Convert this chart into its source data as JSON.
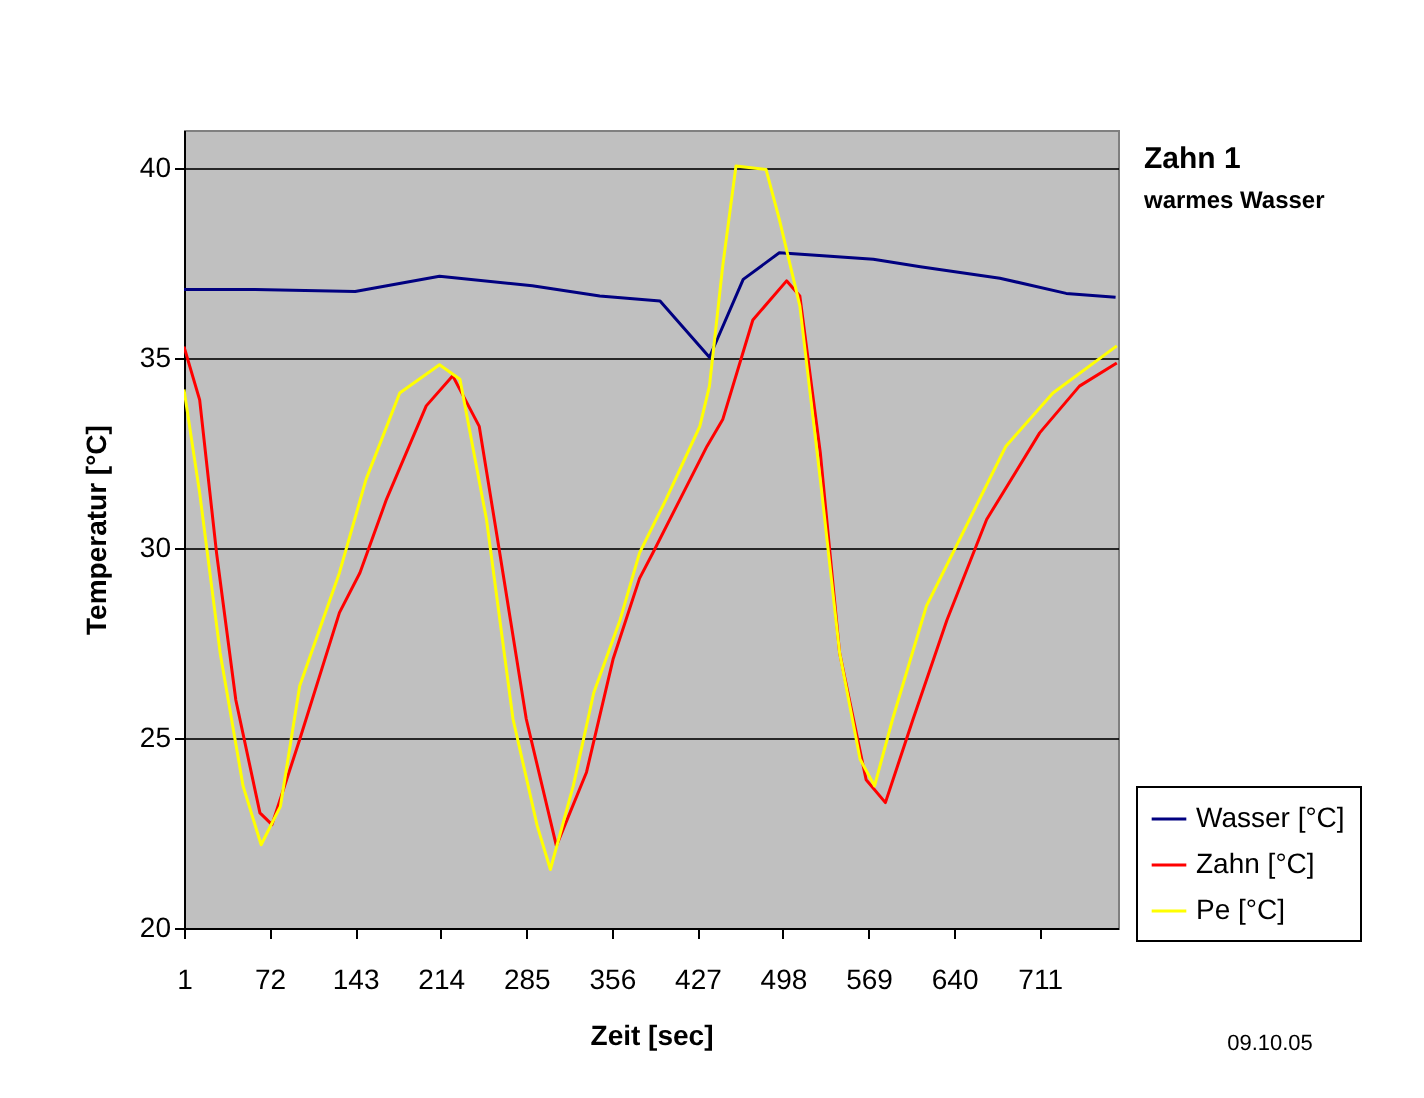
{
  "chart_data": {
    "type": "line",
    "title": "Zahn 1",
    "subtitle": "warmes Wasser",
    "xlabel": "Zeit [sec]",
    "ylabel": "Temperatur [°C]",
    "xlim": [
      1,
      776
    ],
    "xticks": [
      1,
      72,
      143,
      214,
      285,
      356,
      427,
      498,
      569,
      640,
      711
    ],
    "ylim": [
      20,
      41
    ],
    "yticks": [
      20,
      25,
      30,
      35,
      40
    ],
    "grid": "y",
    "legend": "bottom right",
    "marker": "none",
    "line_style": "solid",
    "annotations": [
      "09.10.05"
    ],
    "series": [
      {
        "name": "Wasser [°C]",
        "color": "#000080",
        "x": [
          1,
          60,
          143,
          213,
          290,
          346,
          396,
          437,
          465,
          495,
          573,
          612,
          678,
          733,
          774
        ],
        "values": [
          36.8,
          36.8,
          36.75,
          37.15,
          36.9,
          36.63,
          36.5,
          35.02,
          37.07,
          37.77,
          37.6,
          37.4,
          37.1,
          36.7,
          36.6
        ]
      },
      {
        "name": "Zahn [°C]",
        "color": "#ff0000",
        "x": [
          1,
          14,
          28,
          44,
          64,
          74,
          97,
          130,
          147,
          169,
          202,
          224,
          246,
          263,
          285,
          310,
          335,
          357,
          379,
          390,
          435,
          448,
          473,
          501,
          512,
          529,
          545,
          567,
          583,
          606,
          634,
          667,
          711,
          744,
          775
        ],
        "values": [
          35.3,
          33.9,
          29.87,
          26.0,
          23.03,
          22.72,
          24.96,
          28.3,
          29.35,
          31.28,
          33.74,
          34.53,
          33.2,
          29.87,
          25.5,
          22.16,
          24.1,
          27.07,
          29.2,
          29.87,
          32.68,
          33.38,
          36.0,
          37.03,
          36.63,
          32.5,
          27.24,
          23.9,
          23.3,
          25.5,
          28.1,
          30.75,
          33.03,
          34.26,
          34.87
        ]
      },
      {
        "name": "Pe [°C]",
        "color": "#ffff00",
        "x": [
          1,
          14,
          31,
          50,
          65,
          81,
          97,
          130,
          152,
          180,
          213,
          230,
          252,
          274,
          294,
          305,
          324,
          341,
          363,
          379,
          401,
          429,
          437,
          448,
          459,
          484,
          495,
          512,
          529,
          545,
          562,
          574,
          589,
          617,
          639,
          683,
          722,
          775
        ],
        "values": [
          34.17,
          31.45,
          27.24,
          23.74,
          22.19,
          23.2,
          26.37,
          29.35,
          31.8,
          34.08,
          34.82,
          34.44,
          30.75,
          25.5,
          22.7,
          21.54,
          23.74,
          26.19,
          28.12,
          29.87,
          31.28,
          33.2,
          34.26,
          37.42,
          40.05,
          39.96,
          38.65,
          36.37,
          31.8,
          27.24,
          24.44,
          23.74,
          25.5,
          28.47,
          29.87,
          32.68,
          34.08,
          35.32
        ]
      }
    ]
  }
}
